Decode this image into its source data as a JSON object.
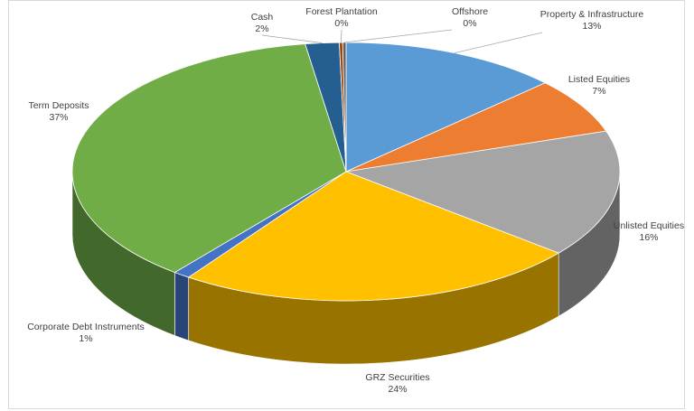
{
  "chart_data": {
    "type": "pie",
    "categories": [
      "Property & Infrastructure",
      "Listed Equities",
      "Unlisted Equities",
      "GRZ Securities",
      "Corporate Debt Instruments",
      "Term Deposits",
      "Cash",
      "Forest Plantation",
      "Offshore"
    ],
    "values": [
      13,
      7,
      16,
      24,
      1,
      37,
      2,
      0.2,
      0.2
    ],
    "value_labels": [
      "13%",
      "7%",
      "16%",
      "24%",
      "1%",
      "37%",
      "2%",
      "0%",
      "0%"
    ],
    "colors": [
      "#5b9bd5",
      "#ed7d31",
      "#a5a5a5",
      "#ffc000",
      "#4472c4",
      "#70ad47",
      "#255e91",
      "#9e480e",
      "#636363"
    ]
  }
}
